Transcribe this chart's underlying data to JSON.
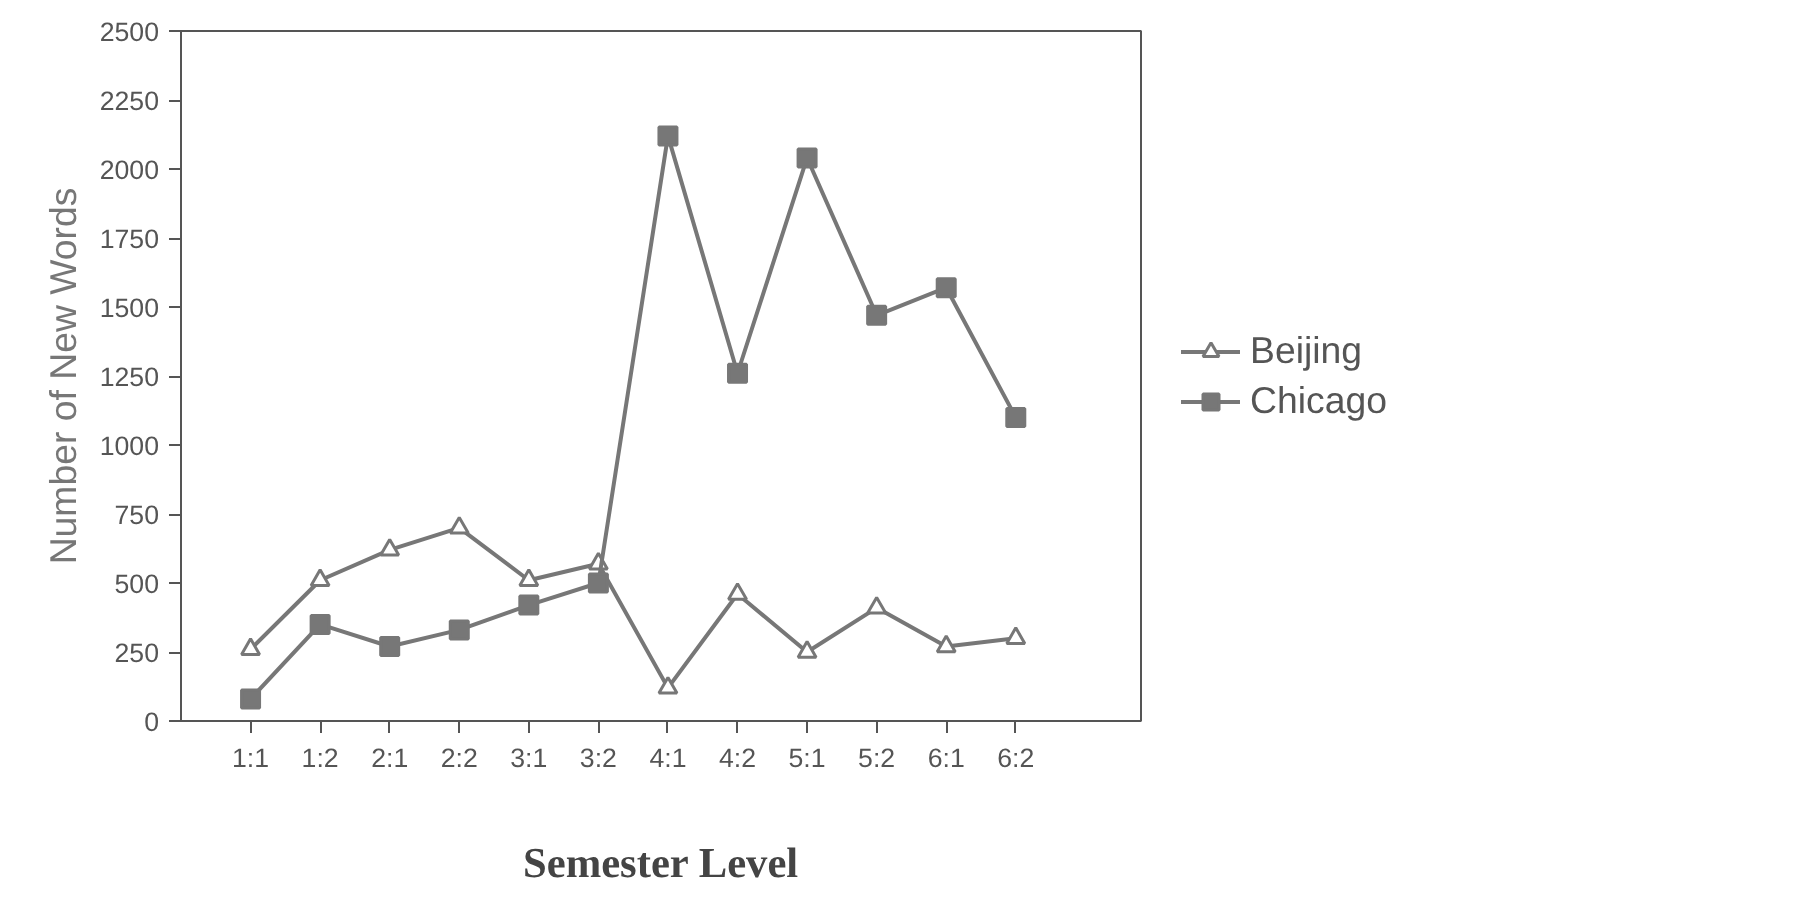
{
  "chart_data": {
    "type": "line",
    "xlabel": "Semester Level",
    "ylabel": "Number of New Words",
    "categories": [
      "1:1",
      "1:2",
      "2:1",
      "2:2",
      "3:1",
      "3:2",
      "4:1",
      "4:2",
      "5:1",
      "5:2",
      "6:1",
      "6:2"
    ],
    "series": [
      {
        "name": "Beijing",
        "color": "#777777",
        "marker": "triangle",
        "values": [
          260,
          510,
          620,
          700,
          510,
          570,
          120,
          460,
          250,
          410,
          270,
          300
        ]
      },
      {
        "name": "Chicago",
        "color": "#777777",
        "marker": "square",
        "values": [
          80,
          350,
          270,
          330,
          420,
          500,
          2120,
          1260,
          2040,
          1470,
          1570,
          1100
        ]
      }
    ],
    "ylim": [
      0,
      2500
    ],
    "yticks": [
      0,
      250,
      500,
      750,
      1000,
      1250,
      1500,
      1750,
      2000,
      2250,
      2500
    ],
    "grid": false,
    "legend": "right",
    "line_style": "solid"
  }
}
